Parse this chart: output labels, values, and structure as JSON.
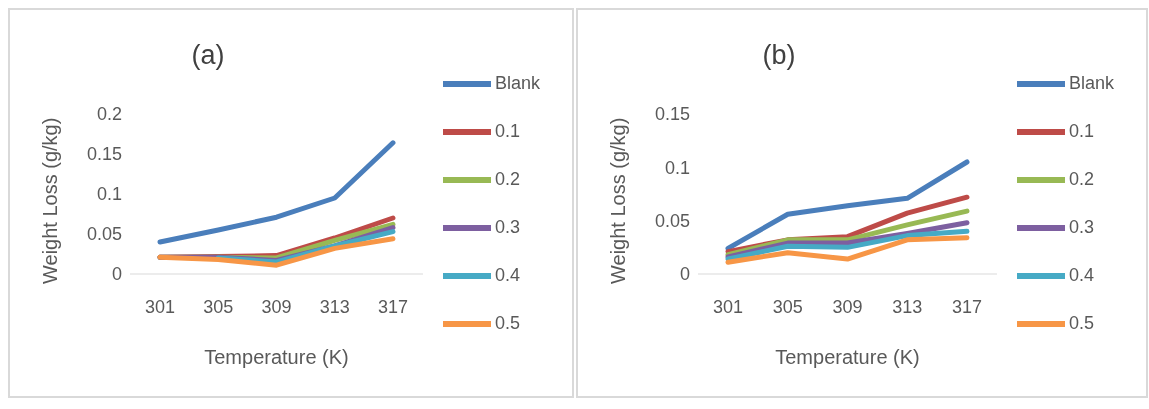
{
  "chart_data": [
    {
      "type": "line",
      "title": "(a)",
      "xlabel": "Temperature (K)",
      "ylabel": "Weight Loss (g/kg)",
      "categories": [
        "301",
        "305",
        "309",
        "313",
        "317"
      ],
      "ylim": [
        0,
        0.2
      ],
      "yticks": [
        0,
        0.05,
        0.1,
        0.15,
        0.2
      ],
      "grid": false,
      "legend": "right",
      "marker": "none",
      "series": [
        {
          "name": "Blank",
          "color": "#4a7ebb",
          "values": [
            0.04,
            0.055,
            0.071,
            0.095,
            0.164
          ]
        },
        {
          "name": "0.1",
          "color": "#be4b48",
          "values": [
            0.021,
            0.022,
            0.023,
            0.045,
            0.07
          ]
        },
        {
          "name": "0.2",
          "color": "#98b954",
          "values": [
            0.021,
            0.021,
            0.02,
            0.042,
            0.062
          ]
        },
        {
          "name": "0.3",
          "color": "#7d5fa0",
          "values": [
            0.021,
            0.021,
            0.017,
            0.035,
            0.058
          ]
        },
        {
          "name": "0.4",
          "color": "#46aac5",
          "values": [
            null,
            0.02,
            0.015,
            0.035,
            0.053
          ]
        },
        {
          "name": "0.5",
          "color": "#f79646",
          "values": [
            0.021,
            0.018,
            0.011,
            0.032,
            0.044
          ]
        }
      ]
    },
    {
      "type": "line",
      "title": "(b)",
      "xlabel": "Temperature (K)",
      "ylabel": "Weight Loss (g/kg)",
      "categories": [
        "301",
        "305",
        "309",
        "313",
        "317"
      ],
      "ylim": [
        0,
        0.15
      ],
      "yticks": [
        0,
        0.05,
        0.1,
        0.15
      ],
      "grid": false,
      "legend": "right",
      "marker": "none",
      "series": [
        {
          "name": "Blank",
          "color": "#4a7ebb",
          "values": [
            0.024,
            0.056,
            0.064,
            0.071,
            0.105
          ]
        },
        {
          "name": "0.1",
          "color": "#be4b48",
          "values": [
            0.021,
            0.032,
            0.035,
            0.057,
            0.072
          ]
        },
        {
          "name": "0.2",
          "color": "#98b954",
          "values": [
            0.018,
            0.032,
            0.032,
            0.046,
            0.059
          ]
        },
        {
          "name": "0.3",
          "color": "#7d5fa0",
          "values": [
            0.016,
            0.029,
            0.029,
            0.038,
            0.048
          ]
        },
        {
          "name": "0.4",
          "color": "#46aac5",
          "values": [
            0.014,
            0.026,
            0.025,
            0.036,
            0.04
          ]
        },
        {
          "name": "0.5",
          "color": "#f79646",
          "values": [
            0.011,
            0.02,
            0.014,
            0.032,
            0.034
          ]
        }
      ]
    }
  ]
}
